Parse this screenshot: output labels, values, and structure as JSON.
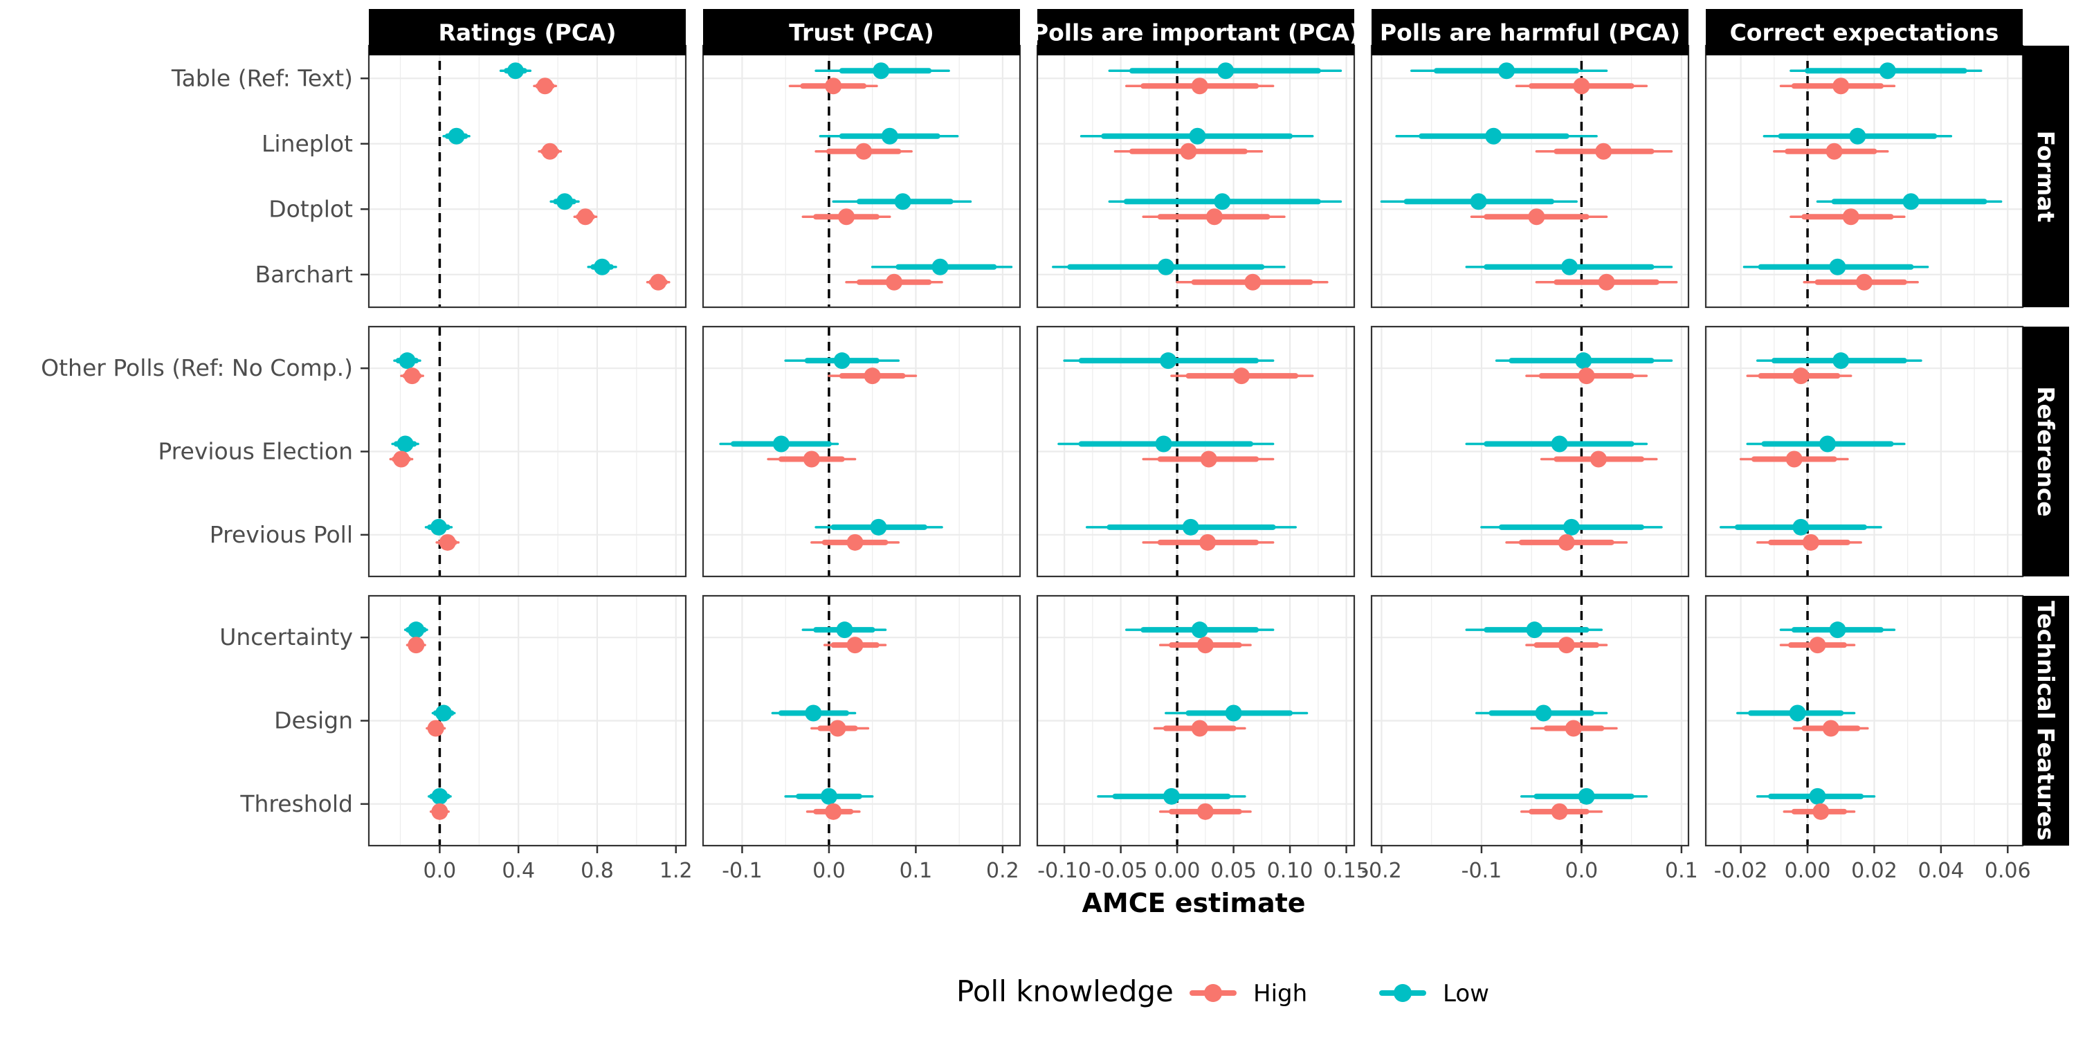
{
  "chart_data": {
    "type": "scatter",
    "subtype": "coefficient-plot-faceted",
    "xlabel": "AMCE estimate",
    "legend": {
      "title": "Poll knowledge",
      "placement": "bottom",
      "entries": [
        {
          "name": "High",
          "color": "#F8766D"
        },
        {
          "name": "Low",
          "color": "#00BFC4"
        }
      ]
    },
    "columns": [
      {
        "title": "Ratings (PCA)",
        "xlim": [
          -0.36,
          1.25
        ],
        "ticks": [
          0.0,
          0.4,
          0.8,
          1.2
        ],
        "tick_labels": [
          "0.0",
          "0.4",
          "0.8",
          "1.2"
        ]
      },
      {
        "title": "Trust (PCA)",
        "xlim": [
          -0.145,
          0.22
        ],
        "ticks": [
          -0.1,
          0.0,
          0.1,
          0.2
        ],
        "tick_labels": [
          "-0.1",
          "0.0",
          "0.1",
          "0.2"
        ]
      },
      {
        "title": "Polls are important (PCA)",
        "xlim": [
          -0.124,
          0.157
        ],
        "ticks": [
          -0.1,
          -0.05,
          0.0,
          0.05,
          0.1,
          0.15
        ],
        "tick_labels": [
          "-0.10",
          "-0.05",
          "0.00",
          "0.05",
          "0.10",
          "0.15"
        ]
      },
      {
        "title": "Polls are harmful (PCA)",
        "xlim": [
          -0.21,
          0.107
        ],
        "ticks": [
          -0.2,
          -0.1,
          0.0,
          0.1
        ],
        "tick_labels": [
          "-0.2",
          "-0.1",
          "0.0",
          "0.1"
        ]
      },
      {
        "title": "Correct expectations",
        "xlim": [
          -0.0305,
          0.0645
        ],
        "ticks": [
          -0.02,
          0.0,
          0.02,
          0.04,
          0.06
        ],
        "tick_labels": [
          "-0.02",
          "0.00",
          "0.02",
          "0.04",
          "0.06"
        ]
      }
    ],
    "rows": [
      {
        "title": "Format",
        "terms": [
          "Table (Ref: Text)",
          "Lineplot",
          "Dotplot",
          "Barchart"
        ]
      },
      {
        "title": "Reference",
        "terms": [
          "Other Polls (Ref: No Comp.)",
          "Previous Election",
          "Previous Poll"
        ]
      },
      {
        "title": "Technical Features",
        "terms": [
          "Uncertainty",
          "Design",
          "Threshold"
        ]
      }
    ],
    "estimates": {
      "Ratings (PCA)": {
        "Table (Ref: Text)": {
          "Low": [
            0.385,
            0.34,
            0.43,
            0.31,
            0.46
          ],
          "High": [
            0.535,
            0.5,
            0.57,
            0.48,
            0.59
          ]
        },
        "Lineplot": {
          "Low": [
            0.085,
            0.04,
            0.13,
            0.02,
            0.15
          ],
          "High": [
            0.56,
            0.525,
            0.595,
            0.505,
            0.615
          ]
        },
        "Dotplot": {
          "Low": [
            0.635,
            0.59,
            0.68,
            0.565,
            0.705
          ],
          "High": [
            0.74,
            0.705,
            0.775,
            0.685,
            0.795
          ]
        },
        "Barchart": {
          "Low": [
            0.825,
            0.78,
            0.87,
            0.755,
            0.895
          ],
          "High": [
            1.11,
            1.075,
            1.145,
            1.055,
            1.165
          ]
        },
        "Other Polls (Ref: No Comp.)": {
          "Low": [
            -0.165,
            -0.21,
            -0.12,
            -0.23,
            -0.1
          ],
          "High": [
            -0.14,
            -0.175,
            -0.105,
            -0.195,
            -0.085
          ]
        },
        "Previous Election": {
          "Low": [
            -0.175,
            -0.22,
            -0.13,
            -0.24,
            -0.11
          ],
          "High": [
            -0.195,
            -0.23,
            -0.16,
            -0.25,
            -0.14
          ]
        },
        "Previous Poll": {
          "Low": [
            -0.005,
            -0.05,
            0.04,
            -0.07,
            0.06
          ],
          "High": [
            0.04,
            0.005,
            0.075,
            -0.015,
            0.095
          ]
        },
        "Uncertainty": {
          "Low": [
            -0.12,
            -0.16,
            -0.08,
            -0.175,
            -0.065
          ],
          "High": [
            -0.12,
            -0.15,
            -0.09,
            -0.165,
            -0.075
          ]
        },
        "Design": {
          "Low": [
            0.02,
            -0.02,
            0.06,
            -0.035,
            0.075
          ],
          "High": [
            -0.02,
            -0.05,
            0.01,
            -0.065,
            0.025
          ]
        },
        "Threshold": {
          "Low": [
            0.0,
            -0.04,
            0.04,
            -0.055,
            0.055
          ],
          "High": [
            0.0,
            -0.03,
            0.03,
            -0.045,
            0.045
          ]
        }
      },
      "Trust (PCA)": {
        "Table (Ref: Text)": {
          "Low": [
            0.06,
            0.015,
            0.115,
            -0.015,
            0.138
          ],
          "High": [
            0.005,
            -0.03,
            0.04,
            -0.045,
            0.055
          ]
        },
        "Lineplot": {
          "Low": [
            0.07,
            0.015,
            0.125,
            -0.01,
            0.148
          ],
          "High": [
            0.04,
            0.0,
            0.08,
            -0.015,
            0.095
          ]
        },
        "Dotplot": {
          "Low": [
            0.085,
            0.035,
            0.14,
            0.005,
            0.163
          ],
          "High": [
            0.02,
            -0.015,
            0.055,
            -0.03,
            0.07
          ]
        },
        "Barchart": {
          "Low": [
            0.128,
            0.08,
            0.19,
            0.05,
            0.21
          ],
          "High": [
            0.075,
            0.035,
            0.115,
            0.02,
            0.13
          ]
        },
        "Other Polls (Ref: No Comp.)": {
          "Low": [
            0.015,
            -0.025,
            0.055,
            -0.05,
            0.08
          ],
          "High": [
            0.05,
            0.015,
            0.085,
            0.0,
            0.1
          ]
        },
        "Previous Election": {
          "Low": [
            -0.055,
            -0.11,
            0.0,
            -0.125,
            0.01
          ],
          "High": [
            -0.02,
            -0.055,
            0.015,
            -0.07,
            0.03
          ]
        },
        "Previous Poll": {
          "Low": [
            0.057,
            0.005,
            0.11,
            -0.015,
            0.13
          ],
          "High": [
            0.03,
            -0.005,
            0.065,
            -0.02,
            0.08
          ]
        },
        "Uncertainty": {
          "Low": [
            0.018,
            -0.015,
            0.05,
            -0.03,
            0.065
          ],
          "High": [
            0.03,
            0.005,
            0.055,
            -0.005,
            0.065
          ]
        },
        "Design": {
          "Low": [
            -0.018,
            -0.055,
            0.02,
            -0.065,
            0.03
          ],
          "High": [
            0.01,
            -0.01,
            0.03,
            -0.02,
            0.045
          ]
        },
        "Threshold": {
          "Low": [
            0.0,
            -0.035,
            0.035,
            -0.05,
            0.05
          ],
          "High": [
            0.005,
            -0.015,
            0.025,
            -0.025,
            0.035
          ]
        }
      },
      "Polls are important (PCA)": {
        "Table (Ref: Text)": {
          "Low": [
            0.043,
            -0.04,
            0.125,
            -0.06,
            0.145
          ],
          "High": [
            0.02,
            -0.03,
            0.07,
            -0.045,
            0.085
          ]
        },
        "Lineplot": {
          "Low": [
            0.018,
            -0.065,
            0.1,
            -0.085,
            0.12
          ],
          "High": [
            0.01,
            -0.04,
            0.06,
            -0.055,
            0.075
          ]
        },
        "Dotplot": {
          "Low": [
            0.04,
            -0.045,
            0.125,
            -0.06,
            0.145
          ],
          "High": [
            0.033,
            -0.015,
            0.08,
            -0.03,
            0.095
          ]
        },
        "Barchart": {
          "Low": [
            -0.01,
            -0.095,
            0.075,
            -0.11,
            0.095
          ],
          "High": [
            0.067,
            0.015,
            0.118,
            0.0,
            0.133
          ]
        },
        "Other Polls (Ref: No Comp.)": {
          "Low": [
            -0.008,
            -0.085,
            0.07,
            -0.1,
            0.085
          ],
          "High": [
            0.057,
            0.01,
            0.105,
            -0.005,
            0.12
          ]
        },
        "Previous Election": {
          "Low": [
            -0.012,
            -0.085,
            0.065,
            -0.105,
            0.085
          ],
          "High": [
            0.028,
            -0.015,
            0.07,
            -0.03,
            0.085
          ]
        },
        "Previous Poll": {
          "Low": [
            0.012,
            -0.06,
            0.085,
            -0.08,
            0.105
          ],
          "High": [
            0.027,
            -0.015,
            0.07,
            -0.03,
            0.085
          ]
        },
        "Uncertainty": {
          "Low": [
            0.02,
            -0.03,
            0.07,
            -0.045,
            0.085
          ],
          "High": [
            0.025,
            -0.005,
            0.055,
            -0.015,
            0.065
          ]
        },
        "Design": {
          "Low": [
            0.05,
            0.01,
            0.1,
            -0.01,
            0.115
          ],
          "High": [
            0.02,
            -0.01,
            0.05,
            -0.02,
            0.06
          ]
        },
        "Threshold": {
          "Low": [
            -0.005,
            -0.055,
            0.045,
            -0.07,
            0.06
          ],
          "High": [
            0.025,
            -0.005,
            0.055,
            -0.015,
            0.065
          ]
        }
      },
      "Polls are harmful (PCA)": {
        "Table (Ref: Text)": {
          "Low": [
            -0.075,
            -0.145,
            -0.005,
            -0.17,
            0.025
          ],
          "High": [
            0.0,
            -0.05,
            0.05,
            -0.065,
            0.065
          ]
        },
        "Lineplot": {
          "Low": [
            -0.088,
            -0.16,
            -0.015,
            -0.185,
            0.015
          ],
          "High": [
            0.022,
            -0.025,
            0.07,
            -0.045,
            0.09
          ]
        },
        "Dotplot": {
          "Low": [
            -0.103,
            -0.175,
            -0.03,
            -0.2,
            -0.005
          ],
          "High": [
            -0.045,
            -0.095,
            0.005,
            -0.11,
            0.025
          ]
        },
        "Barchart": {
          "Low": [
            -0.012,
            -0.095,
            0.07,
            -0.115,
            0.09
          ],
          "High": [
            0.025,
            -0.025,
            0.075,
            -0.045,
            0.095
          ]
        },
        "Other Polls (Ref: No Comp.)": {
          "Low": [
            0.002,
            -0.07,
            0.07,
            -0.085,
            0.09
          ],
          "High": [
            0.005,
            -0.04,
            0.05,
            -0.055,
            0.065
          ]
        },
        "Previous Election": {
          "Low": [
            -0.022,
            -0.095,
            0.05,
            -0.115,
            0.065
          ],
          "High": [
            0.017,
            -0.025,
            0.06,
            -0.04,
            0.075
          ]
        },
        "Previous Poll": {
          "Low": [
            -0.01,
            -0.08,
            0.06,
            -0.1,
            0.08
          ],
          "High": [
            -0.015,
            -0.06,
            0.03,
            -0.075,
            0.045
          ]
        },
        "Uncertainty": {
          "Low": [
            -0.047,
            -0.095,
            0.005,
            -0.115,
            0.02
          ],
          "High": [
            -0.015,
            -0.045,
            0.015,
            -0.055,
            0.025
          ]
        },
        "Design": {
          "Low": [
            -0.038,
            -0.09,
            0.01,
            -0.105,
            0.025
          ],
          "High": [
            -0.008,
            -0.035,
            0.02,
            -0.05,
            0.035
          ]
        },
        "Threshold": {
          "Low": [
            0.005,
            -0.045,
            0.05,
            -0.06,
            0.065
          ],
          "High": [
            -0.022,
            -0.05,
            0.005,
            -0.06,
            0.02
          ]
        }
      },
      "Correct expectations": {
        "Table (Ref: Text)": {
          "Low": [
            0.024,
            0.0,
            0.047,
            -0.005,
            0.052
          ],
          "High": [
            0.01,
            -0.004,
            0.022,
            -0.008,
            0.026
          ]
        },
        "Lineplot": {
          "Low": [
            0.015,
            -0.008,
            0.038,
            -0.013,
            0.043
          ],
          "High": [
            0.008,
            -0.006,
            0.02,
            -0.01,
            0.024
          ]
        },
        "Dotplot": {
          "Low": [
            0.031,
            0.008,
            0.053,
            0.003,
            0.058
          ],
          "High": [
            0.013,
            -0.001,
            0.025,
            -0.005,
            0.029
          ]
        },
        "Barchart": {
          "Low": [
            0.009,
            -0.014,
            0.031,
            -0.019,
            0.036
          ],
          "High": [
            0.017,
            0.003,
            0.029,
            -0.001,
            0.033
          ]
        },
        "Other Polls (Ref: No Comp.)": {
          "Low": [
            0.01,
            -0.01,
            0.029,
            -0.015,
            0.034
          ],
          "High": [
            -0.002,
            -0.014,
            0.009,
            -0.018,
            0.013
          ]
        },
        "Previous Election": {
          "Low": [
            0.006,
            -0.013,
            0.025,
            -0.018,
            0.029
          ],
          "High": [
            -0.004,
            -0.016,
            0.008,
            -0.02,
            0.012
          ]
        },
        "Previous Poll": {
          "Low": [
            -0.002,
            -0.021,
            0.017,
            -0.026,
            0.022
          ],
          "High": [
            0.001,
            -0.011,
            0.012,
            -0.015,
            0.016
          ]
        },
        "Uncertainty": {
          "Low": [
            0.009,
            -0.004,
            0.022,
            -0.008,
            0.026
          ],
          "High": [
            0.003,
            -0.005,
            0.011,
            -0.008,
            0.014
          ]
        },
        "Design": {
          "Low": [
            -0.003,
            -0.017,
            0.01,
            -0.021,
            0.014
          ],
          "High": [
            0.007,
            -0.001,
            0.015,
            -0.004,
            0.018
          ]
        },
        "Threshold": {
          "Low": [
            0.003,
            -0.011,
            0.016,
            -0.015,
            0.02
          ],
          "High": [
            0.004,
            -0.004,
            0.011,
            -0.007,
            0.014
          ]
        }
      }
    }
  }
}
